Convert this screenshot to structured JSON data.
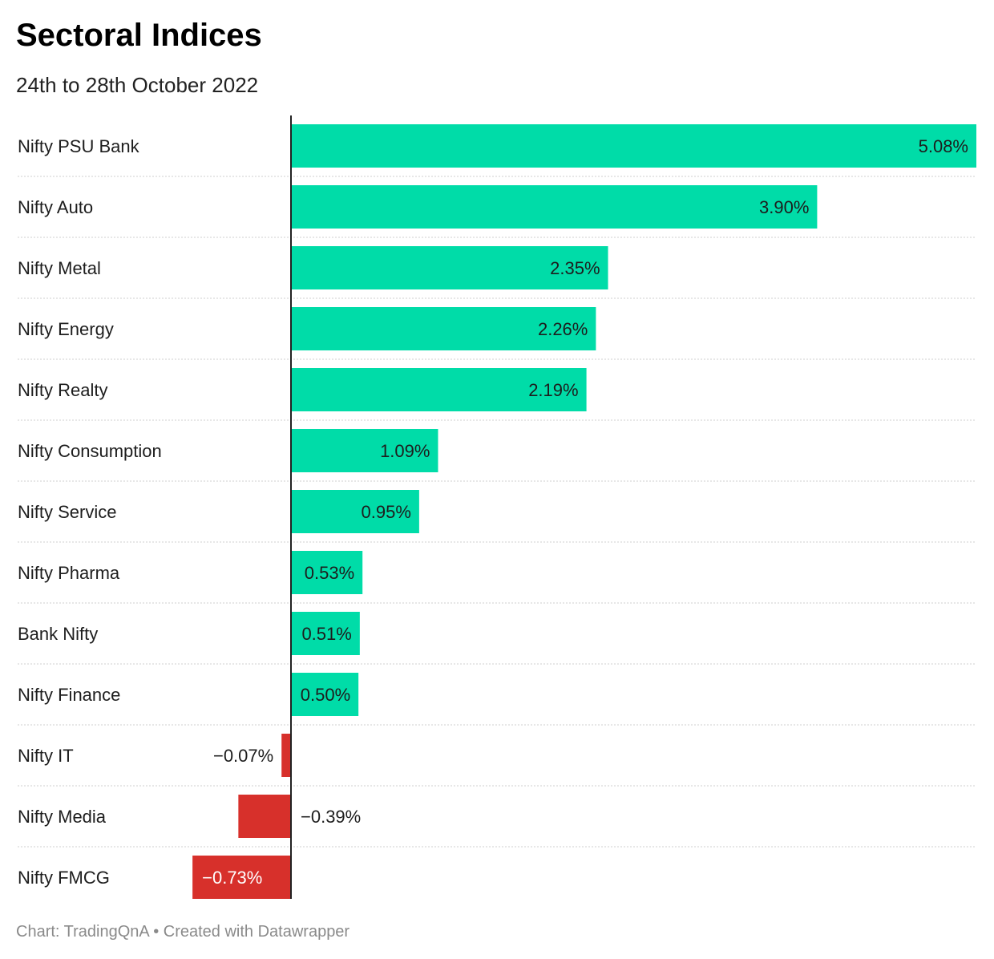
{
  "title": "Sectoral Indices",
  "subtitle": "24th to 28th October 2022",
  "footer": "Chart: TradingQnA • Created with Datawrapper",
  "colors": {
    "positive": "#00dca8",
    "negative": "#d7302b",
    "axis": "#222222",
    "gridline": "#cfcfcf",
    "label": "#1d1d1d"
  },
  "chart_data": {
    "type": "bar",
    "orientation": "horizontal",
    "categories": [
      "Nifty PSU Bank",
      "Nifty Auto",
      "Nifty Metal",
      "Nifty Energy",
      "Nifty Realty",
      "Nifty Consumption",
      "Nifty Service",
      "Nifty Pharma",
      "Bank Nifty",
      "Nifty Finance",
      "Nifty IT",
      "Nifty Media",
      "Nifty FMCG"
    ],
    "values": [
      5.08,
      3.9,
      2.35,
      2.26,
      2.19,
      1.09,
      0.95,
      0.53,
      0.51,
      0.5,
      -0.07,
      -0.39,
      -0.73
    ],
    "value_labels": [
      "5.08%",
      "3.90%",
      "2.35%",
      "2.26%",
      "2.19%",
      "1.09%",
      "0.95%",
      "0.53%",
      "0.51%",
      "0.50%",
      "−0.07%",
      "−0.39%",
      "−0.73%"
    ],
    "xlim": [
      -0.73,
      5.08
    ],
    "grid": false,
    "legend": "none"
  }
}
